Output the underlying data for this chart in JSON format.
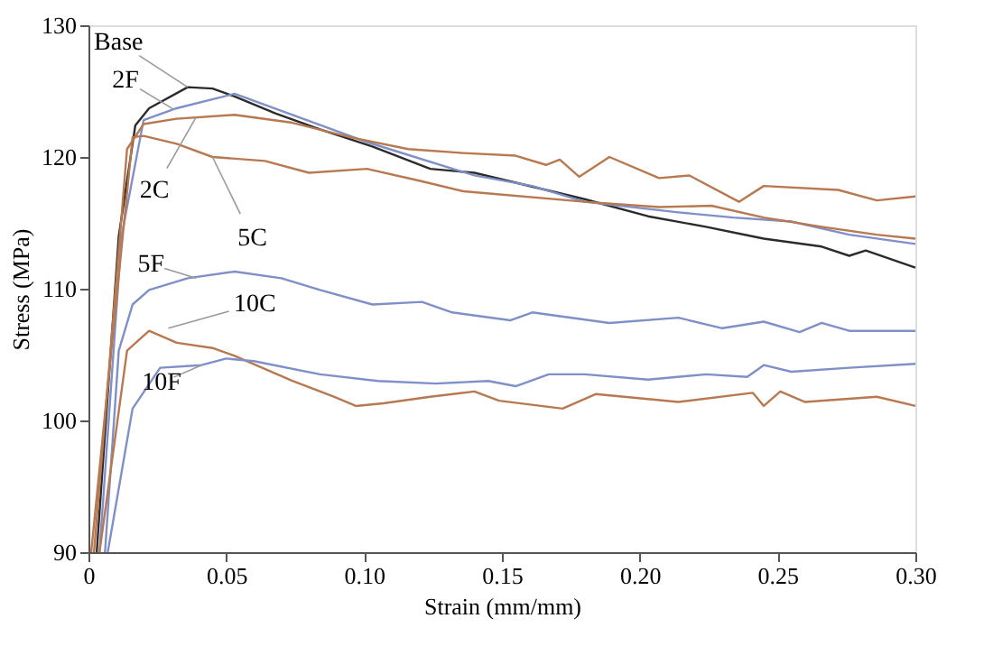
{
  "chart_data": {
    "type": "line",
    "xlabel": "Strain (mm/mm)",
    "ylabel": "Stress (MPa)",
    "xlim": [
      0,
      0.3
    ],
    "ylim": [
      90,
      130
    ],
    "xticks": [
      0,
      0.05,
      {
        "value": 0.1,
        "label": "0.10"
      },
      0.15,
      {
        "value": 0.2,
        "label": "0.20"
      },
      0.25,
      {
        "value": 0.3,
        "label": "0.30"
      }
    ],
    "yticks": [
      90,
      100,
      110,
      120,
      130
    ],
    "grid": false,
    "marker": "none",
    "line_style": "solid",
    "series": [
      {
        "color": "#2b2b2b",
        "x": [
          0.003,
          0.011,
          0.017,
          0.022,
          0.036,
          0.045,
          0.053,
          0.068,
          0.084,
          0.103,
          0.124,
          0.14,
          0.18,
          0.203,
          0.224,
          0.245,
          0.266,
          0.276,
          0.282,
          0.3
        ],
        "values": [
          90,
          114,
          122.4,
          123.7,
          125.3,
          125.2,
          124.6,
          123.3,
          122.1,
          120.8,
          119.1,
          118.8,
          116.8,
          115.5,
          114.7,
          113.8,
          113.2,
          112.5,
          112.9,
          111.6
        ]
      },
      {
        "color": "#7f8fc8",
        "x": [
          0.004,
          0.012,
          0.02,
          0.032,
          0.053,
          0.07,
          0.1,
          0.14,
          0.161,
          0.18,
          0.214,
          0.234,
          0.255,
          0.276,
          0.3
        ],
        "values": [
          90,
          114,
          122.8,
          123.7,
          124.8,
          123.5,
          121.2,
          118.6,
          117.8,
          116.6,
          115.8,
          115.4,
          115.1,
          114.1,
          113.4
        ]
      },
      {
        "color": "#b87850",
        "x": [
          0.002,
          0.014,
          0.02,
          0.032,
          0.053,
          0.074,
          0.095,
          0.116,
          0.136,
          0.155,
          0.166,
          0.171,
          0.178,
          0.189,
          0.207,
          0.218,
          0.236,
          0.245,
          0.272,
          0.286,
          0.3
        ],
        "values": [
          90,
          120.6,
          122.5,
          122.9,
          123.2,
          122.6,
          121.5,
          120.6,
          120.3,
          120.1,
          119.4,
          119.8,
          118.5,
          120,
          118.4,
          118.6,
          116.6,
          117.8,
          117.5,
          116.7,
          117
        ]
      },
      {
        "color": "#b87850",
        "x": [
          0.001,
          0.016,
          0.02,
          0.032,
          0.045,
          0.064,
          0.08,
          0.101,
          0.12,
          0.136,
          0.18,
          0.207,
          0.226,
          0.245,
          0.266,
          0.286,
          0.3
        ],
        "values": [
          90,
          121.5,
          121.6,
          121,
          120,
          119.7,
          118.8,
          119.1,
          118.2,
          117.4,
          116.6,
          116.2,
          116.3,
          115.4,
          114.7,
          114.1,
          113.8
        ]
      },
      {
        "color": "#7f8fc8",
        "x": [
          0.006,
          0.011,
          0.016,
          0.022,
          0.036,
          0.053,
          0.07,
          0.084,
          0.103,
          0.121,
          0.132,
          0.153,
          0.161,
          0.189,
          0.214,
          0.23,
          0.245,
          0.258,
          0.266,
          0.276,
          0.3
        ],
        "values": [
          90,
          105.3,
          108.8,
          109.9,
          110.8,
          111.3,
          110.8,
          109.9,
          108.8,
          109,
          108.2,
          107.6,
          108.2,
          107.4,
          107.8,
          107,
          107.5,
          106.7,
          107.4,
          106.8,
          106.8
        ]
      },
      {
        "color": "#b87850",
        "x": [
          0.004,
          0.014,
          0.022,
          0.032,
          0.045,
          0.053,
          0.074,
          0.089,
          0.097,
          0.107,
          0.124,
          0.14,
          0.149,
          0.172,
          0.184,
          0.214,
          0.241,
          0.245,
          0.251,
          0.26,
          0.286,
          0.3
        ],
        "values": [
          90,
          105.3,
          106.8,
          105.9,
          105.5,
          104.9,
          103,
          101.8,
          101.1,
          101.3,
          101.8,
          102.2,
          101.5,
          100.9,
          102,
          101.4,
          102.1,
          101.1,
          102.2,
          101.4,
          101.8,
          101.1
        ]
      },
      {
        "color": "#7f8fc8",
        "x": [
          0.007,
          0.016,
          0.026,
          0.041,
          0.05,
          0.06,
          0.084,
          0.105,
          0.126,
          0.145,
          0.155,
          0.167,
          0.18,
          0.203,
          0.224,
          0.239,
          0.245,
          0.255,
          0.276,
          0.3
        ],
        "values": [
          90,
          100.9,
          104,
          104.2,
          104.7,
          104.5,
          103.5,
          103,
          102.8,
          103,
          102.6,
          103.5,
          103.5,
          103.1,
          103.5,
          103.3,
          104.2,
          103.7,
          104,
          104.3
        ]
      }
    ],
    "annotations": [
      {
        "text": "Base",
        "x": 0.036,
        "y": 125.3
      },
      {
        "text": "2F",
        "x": 0.031,
        "y": 123.6
      },
      {
        "text": "2C",
        "x": 0.039,
        "y": 123.0
      },
      {
        "text": "5C",
        "x": 0.045,
        "y": 120.0
      },
      {
        "text": "5F",
        "x": 0.039,
        "y": 110.8
      },
      {
        "text": "10C",
        "x": 0.029,
        "y": 107.0
      },
      {
        "text": "10F",
        "x": 0.041,
        "y": 104.2
      }
    ]
  }
}
